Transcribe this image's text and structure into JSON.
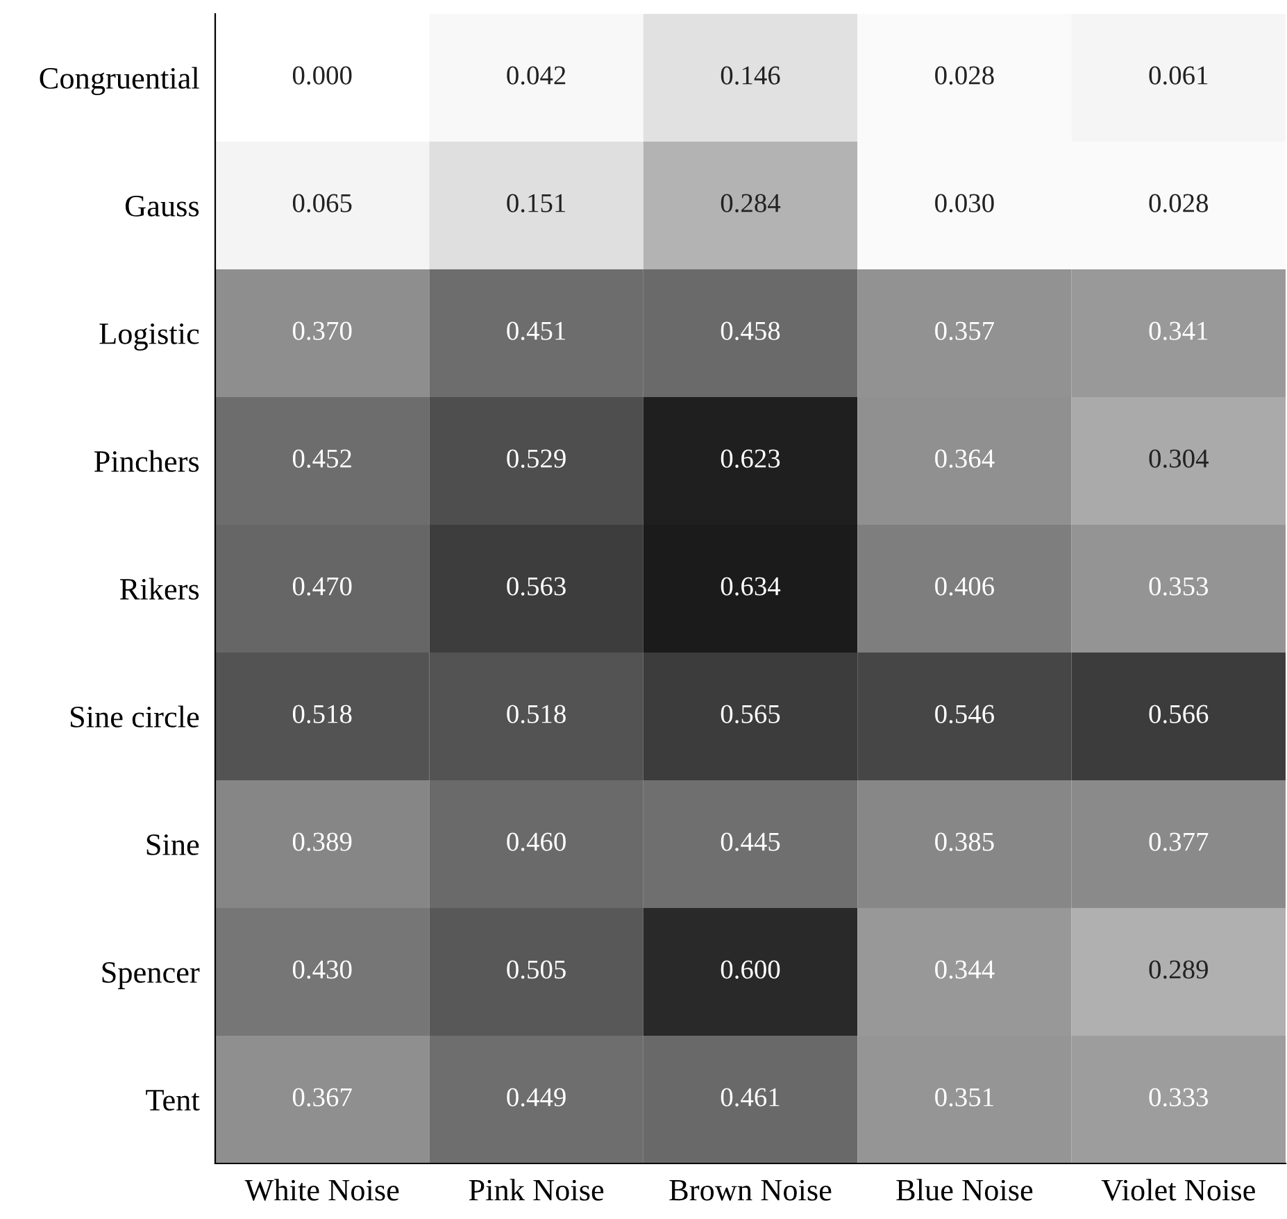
{
  "chart_data": {
    "type": "heatmap",
    "categories": [
      "White Noise",
      "Pink Noise",
      "Brown Noise",
      "Blue Noise",
      "Violet Noise"
    ],
    "y_categories": [
      "Congruential",
      "Gauss",
      "Logistic",
      "Pinchers",
      "Rikers",
      "Sine circle",
      "Sine",
      "Spencer",
      "Tent"
    ],
    "cells": [
      [
        0.0,
        0.042,
        0.146,
        0.028,
        0.061
      ],
      [
        0.065,
        0.151,
        0.284,
        0.03,
        0.028
      ],
      [
        0.37,
        0.451,
        0.458,
        0.357,
        0.341
      ],
      [
        0.452,
        0.529,
        0.623,
        0.364,
        0.304
      ],
      [
        0.47,
        0.563,
        0.634,
        0.406,
        0.353
      ],
      [
        0.518,
        0.518,
        0.565,
        0.546,
        0.566
      ],
      [
        0.389,
        0.46,
        0.445,
        0.385,
        0.377
      ],
      [
        0.43,
        0.505,
        0.6,
        0.344,
        0.289
      ],
      [
        0.367,
        0.449,
        0.461,
        0.351,
        0.333
      ]
    ],
    "cell_labels": [
      [
        "0.000",
        "0.042",
        "0.146",
        "0.028",
        "0.061"
      ],
      [
        "0.065",
        "0.151",
        "0.284",
        "0.030",
        "0.028"
      ],
      [
        "0.370",
        "0.451",
        "0.458",
        "0.357",
        "0.341"
      ],
      [
        "0.452",
        "0.529",
        "0.623",
        "0.364",
        "0.304"
      ],
      [
        "0.470",
        "0.563",
        "0.634",
        "0.406",
        "0.353"
      ],
      [
        "0.518",
        "0.518",
        "0.565",
        "0.546",
        "0.566"
      ],
      [
        "0.389",
        "0.460",
        "0.445",
        "0.385",
        "0.377"
      ],
      [
        "0.430",
        "0.505",
        "0.600",
        "0.344",
        "0.289"
      ],
      [
        "0.367",
        "0.449",
        "0.461",
        "0.351",
        "0.333"
      ]
    ],
    "data_labels": true
  }
}
